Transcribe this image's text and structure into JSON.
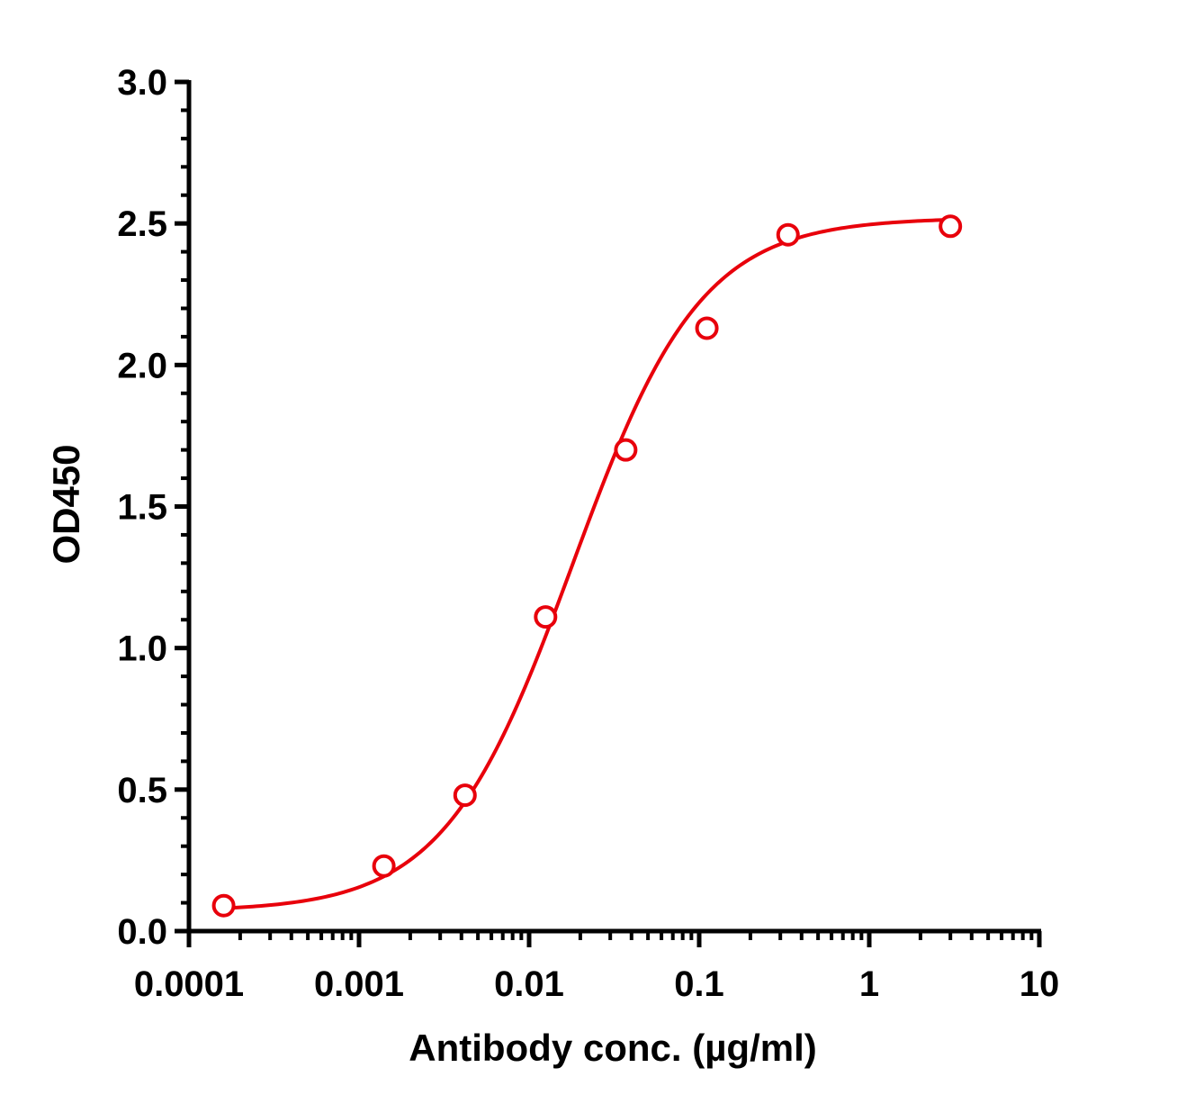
{
  "chart_data": {
    "type": "scatter",
    "xlabel": "Antibody conc. (µg/ml)",
    "ylabel": "OD450",
    "x_scale": "log",
    "xlim": [
      0.0001,
      10
    ],
    "ylim": [
      0,
      3.0
    ],
    "x_ticks": [
      "0.0001",
      "0.001",
      "0.01",
      "0.1",
      "1",
      "10"
    ],
    "y_ticks": [
      "0.0",
      "0.5",
      "1.0",
      "1.5",
      "2.0",
      "2.5",
      "3.0"
    ],
    "grid": false,
    "colors": {
      "series": "#e8000b",
      "axis": "#000000"
    },
    "series": [
      {
        "marker": "open-circle",
        "x": [
          0.00016,
          0.0014,
          0.0042,
          0.0125,
          0.037,
          0.111,
          0.333,
          3.0
        ],
        "y": [
          0.09,
          0.23,
          0.48,
          1.11,
          1.7,
          2.13,
          2.46,
          2.49
        ]
      }
    ],
    "fit_curve": {
      "type": "4PL",
      "bottom": 0.07,
      "top": 2.52,
      "ec50": 0.018,
      "hill": 1.15
    }
  }
}
